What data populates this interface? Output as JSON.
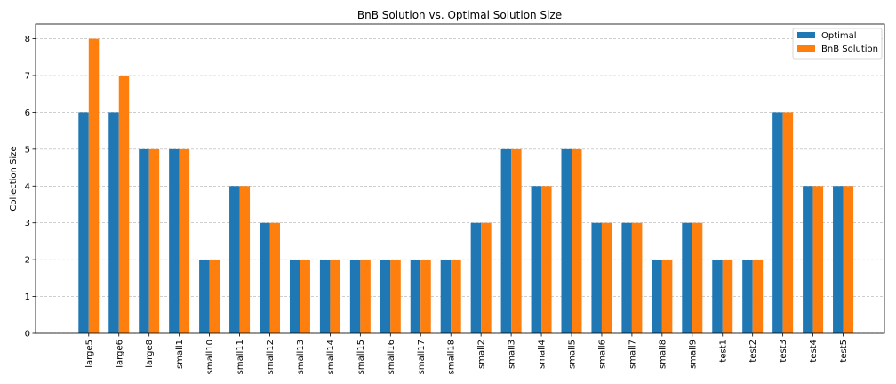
{
  "chart_data": {
    "type": "bar",
    "title": "BnB Solution vs. Optimal Solution Size",
    "xlabel": "",
    "ylabel": "Collection Size",
    "ylim": [
      0,
      8.4
    ],
    "yticks": [
      0,
      1,
      2,
      3,
      4,
      5,
      6,
      7,
      8
    ],
    "grid": "y-dashed",
    "legend_position": "top-right",
    "categories": [
      "large5",
      "large6",
      "large8",
      "small1",
      "small10",
      "small11",
      "small12",
      "small13",
      "small14",
      "small15",
      "small16",
      "small17",
      "small18",
      "small2",
      "small3",
      "small4",
      "small5",
      "small6",
      "small7",
      "small8",
      "small9",
      "test1",
      "test2",
      "test3",
      "test4",
      "test5"
    ],
    "series": [
      {
        "name": "Optimal",
        "color": "#1f77b4",
        "values": [
          6,
          6,
          5,
          5,
          2,
          4,
          3,
          2,
          2,
          2,
          2,
          2,
          2,
          3,
          5,
          4,
          5,
          3,
          3,
          2,
          3,
          2,
          2,
          6,
          4,
          4
        ]
      },
      {
        "name": "BnB Solution",
        "color": "#ff7f0e",
        "values": [
          8,
          7,
          5,
          5,
          2,
          4,
          3,
          2,
          2,
          2,
          2,
          2,
          2,
          3,
          5,
          4,
          5,
          3,
          3,
          2,
          3,
          2,
          2,
          6,
          4,
          4
        ]
      }
    ]
  }
}
